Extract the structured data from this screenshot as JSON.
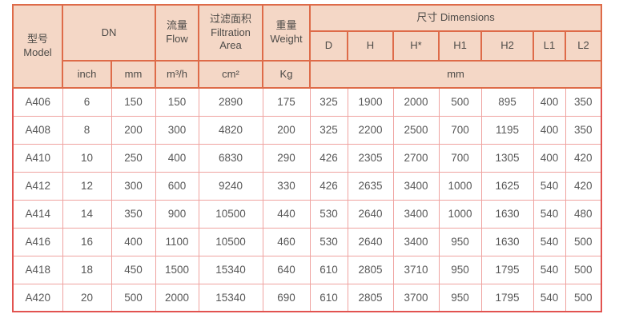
{
  "chart_data": {
    "type": "table",
    "header": {
      "model": "型号\nModel",
      "dn": "DN",
      "dn_sub": [
        "inch",
        "mm"
      ],
      "flow": "流量\nFlow",
      "flow_unit": "m³/h",
      "filtration_area": "过滤面积\nFiltration\nArea",
      "filtration_area_unit": "cm²",
      "weight": "重量\nWeight",
      "weight_unit": "Kg",
      "dimensions": "尺寸 Dimensions",
      "dimensions_sub": [
        "D",
        "H",
        "H*",
        "H1",
        "H2",
        "L1",
        "L2"
      ],
      "dimensions_unit": "mm"
    },
    "rows": [
      [
        "A406",
        "6",
        "150",
        "150",
        "2890",
        "175",
        "325",
        "1900",
        "2000",
        "500",
        "895",
        "400",
        "350"
      ],
      [
        "A408",
        "8",
        "200",
        "300",
        "4820",
        "200",
        "325",
        "2200",
        "2500",
        "700",
        "1195",
        "400",
        "350"
      ],
      [
        "A410",
        "10",
        "250",
        "400",
        "6830",
        "290",
        "426",
        "2305",
        "2700",
        "700",
        "1305",
        "400",
        "420"
      ],
      [
        "A412",
        "12",
        "300",
        "600",
        "9240",
        "330",
        "426",
        "2635",
        "3400",
        "1000",
        "1625",
        "540",
        "420"
      ],
      [
        "A414",
        "14",
        "350",
        "900",
        "10500",
        "440",
        "530",
        "2640",
        "3400",
        "1000",
        "1630",
        "540",
        "480"
      ],
      [
        "A416",
        "16",
        "400",
        "1100",
        "10500",
        "460",
        "530",
        "2640",
        "3400",
        "950",
        "1630",
        "540",
        "500"
      ],
      [
        "A418",
        "18",
        "450",
        "1500",
        "15340",
        "640",
        "610",
        "2805",
        "3710",
        "950",
        "1795",
        "540",
        "500"
      ],
      [
        "A420",
        "20",
        "500",
        "2000",
        "15340",
        "690",
        "610",
        "2805",
        "3700",
        "950",
        "1795",
        "540",
        "500"
      ]
    ],
    "colors": {
      "header_bg": "#f4d7c6",
      "header_border": "#de6b49",
      "grid_border": "#efa3a0",
      "outer_border": "#e25350",
      "header_text": "#4d4b48",
      "cell_text": "#585858"
    }
  }
}
